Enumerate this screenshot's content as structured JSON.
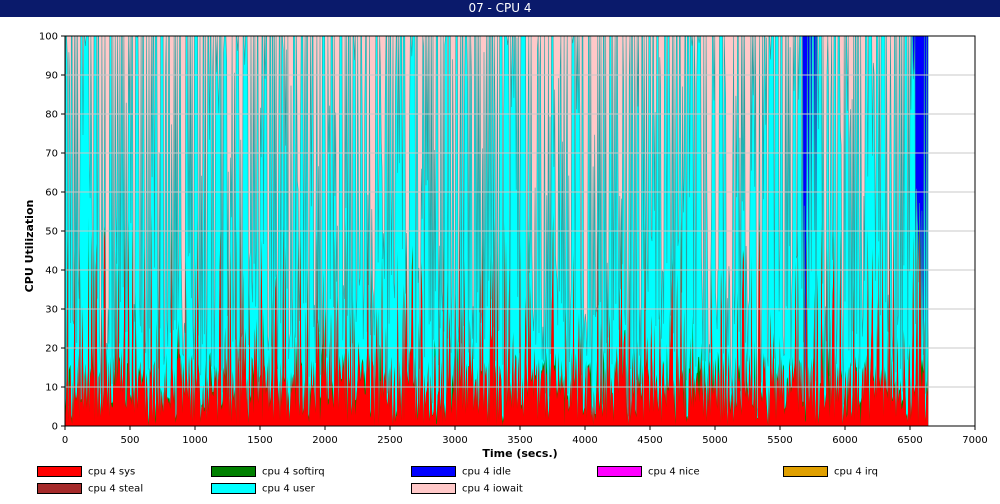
{
  "window": {
    "title": "07 - CPU 4"
  },
  "chart_data": {
    "type": "area",
    "stacked": true,
    "title": "",
    "xlabel": "Time (secs.)",
    "ylabel": "CPU Utilization",
    "xlim": [
      0,
      7000
    ],
    "ylim": [
      0,
      100
    ],
    "x_ticks": [
      "0",
      "500",
      "1000",
      "1500",
      "2000",
      "2500",
      "3000",
      "3500",
      "4000",
      "4500",
      "5000",
      "5500",
      "6000",
      "6500",
      "7000"
    ],
    "y_ticks": [
      "0",
      "10",
      "20",
      "30",
      "40",
      "50",
      "60",
      "70",
      "80",
      "90",
      "100"
    ],
    "grid": "horizontal",
    "legend_position": "bottom",
    "data_end_x": 6640,
    "series": [
      {
        "name": "cpu 4 sys",
        "color": "#ff0000"
      },
      {
        "name": "cpu 4 softirq",
        "color": "#008000"
      },
      {
        "name": "cpu 4 idle",
        "color": "#0000ff"
      },
      {
        "name": "cpu 4 nice",
        "color": "#ff00ff"
      },
      {
        "name": "cpu 4 irq",
        "color": "#e0a000"
      },
      {
        "name": "cpu 4 steal",
        "color": "#a52a2a"
      },
      {
        "name": "cpu 4 user",
        "color": "#00ffff"
      },
      {
        "name": "cpu 4 iowait",
        "color": "#ffc8c8"
      }
    ],
    "idle_spans": [
      [
        5670,
        5790
      ],
      [
        6510,
        6640
      ]
    ]
  }
}
